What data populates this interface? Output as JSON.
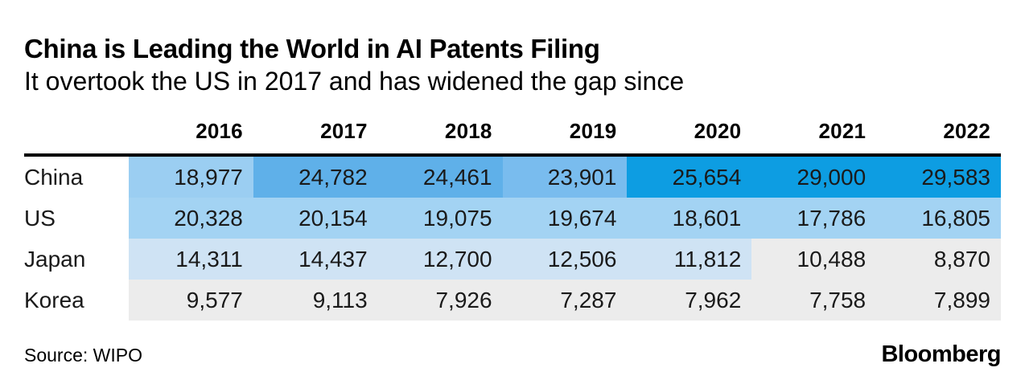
{
  "title": "China is Leading the World in AI Patents Filing",
  "subtitle": "It overtook the US in 2017 and has widened the gap since",
  "footer": {
    "source": "Source: WIPO",
    "brand": "Bloomberg"
  },
  "chart_data": {
    "type": "table",
    "title": "China is Leading the World in AI Patents Filing",
    "subtitle": "It overtook the US in 2017 and has widened the gap since",
    "source": "WIPO",
    "columns": [
      "2016",
      "2017",
      "2018",
      "2019",
      "2020",
      "2021",
      "2022"
    ],
    "rows": [
      {
        "label": "China",
        "values": [
          "18,977",
          "24,782",
          "24,461",
          "23,901",
          "25,654",
          "29,000",
          "29,583"
        ],
        "values_numeric": [
          18977,
          24782,
          24461,
          23901,
          25654,
          29000,
          29583
        ],
        "cell_colors": [
          "#9bcef2",
          "#5fb0e9",
          "#5fb0e9",
          "#79bcee",
          "#0d9de2",
          "#0d9de2",
          "#0d9de2"
        ]
      },
      {
        "label": "US",
        "values": [
          "20,328",
          "20,154",
          "19,075",
          "19,674",
          "18,601",
          "17,786",
          "16,805"
        ],
        "values_numeric": [
          20328,
          20154,
          19075,
          19674,
          18601,
          17786,
          16805
        ],
        "cell_colors": [
          "#a3d3f3",
          "#a3d3f3",
          "#a3d3f3",
          "#a3d3f3",
          "#a3d3f3",
          "#a3d3f3",
          "#a3d3f3"
        ]
      },
      {
        "label": "Japan",
        "values": [
          "14,311",
          "14,437",
          "12,700",
          "12,506",
          "11,812",
          "10,488",
          "8,870"
        ],
        "values_numeric": [
          14311,
          14437,
          12700,
          12506,
          11812,
          10488,
          8870
        ],
        "cell_colors": [
          "#cfe3f4",
          "#cfe3f4",
          "#cfe3f4",
          "#cfe3f4",
          "#cfe3f4",
          "#ececec",
          "#ececec"
        ]
      },
      {
        "label": "Korea",
        "values": [
          "9,577",
          "9,113",
          "7,926",
          "7,287",
          "7,962",
          "7,758",
          "7,899"
        ],
        "values_numeric": [
          9577,
          9113,
          7926,
          7287,
          7962,
          7758,
          7899
        ],
        "cell_colors": [
          "#ececec",
          "#ececec",
          "#ececec",
          "#ececec",
          "#ececec",
          "#ececec",
          "#ececec"
        ]
      }
    ],
    "heatmap_accent": "#0d9de2",
    "legend": "none",
    "grid": false
  }
}
